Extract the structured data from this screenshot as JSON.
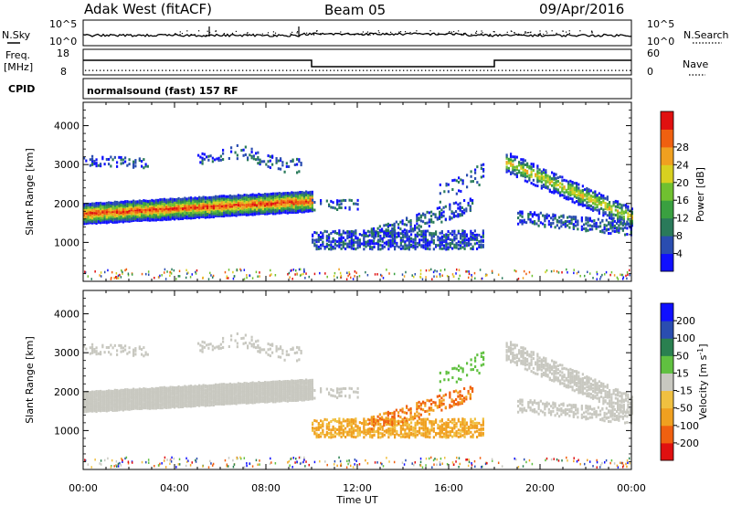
{
  "header": {
    "radar": "Adak West (fitACF)",
    "beam": "Beam 05",
    "date": "09/Apr/2016"
  },
  "status": {
    "nsky_label": "N.Sky",
    "nsky_ticks": [
      "10^5",
      "10^0"
    ],
    "nsearch_label": "N.Search",
    "freq_label_1": "Freq.",
    "freq_label_2": "[MHz]",
    "freq_ticks": [
      "18",
      "8"
    ],
    "nave_label": "Nave",
    "nave_ticks": [
      "60",
      "0"
    ],
    "cpid_label": "CPID",
    "cpid_text": "normalsound (fast) 157 RF"
  },
  "chart_data": [
    {
      "type": "heatmap",
      "panel": "power",
      "ylabel": "Slant Range [km]",
      "xlabel": "",
      "y_ticks": [
        1000,
        2000,
        3000,
        4000
      ],
      "ylim": [
        0,
        4600
      ],
      "colorbar_label": "Power [dB]",
      "colorbar_ticks": [
        "4",
        "8",
        "12",
        "16",
        "20",
        "24",
        "28"
      ],
      "colorbar_colors": [
        "#1010ff",
        "#2a4db0",
        "#2a7a5a",
        "#3aa040",
        "#70c030",
        "#d8d020",
        "#f0a020",
        "#f06010",
        "#e01010"
      ]
    },
    {
      "type": "heatmap",
      "panel": "velocity",
      "ylabel": "Slant Range [km]",
      "xlabel": "Time UT",
      "y_ticks": [
        1000,
        2000,
        3000,
        4000
      ],
      "ylim": [
        0,
        4600
      ],
      "x_ticks": [
        "00:00",
        "04:00",
        "08:00",
        "12:00",
        "16:00",
        "20:00",
        "00:00"
      ],
      "colorbar_label": "Velocity [m s-1]",
      "colorbar_ticks": [
        "-200",
        "-100",
        "-50",
        "-15",
        "15",
        "50",
        "100",
        "200"
      ],
      "colorbar_colors": [
        "#e01010",
        "#f06010",
        "#f0a020",
        "#f0c040",
        "#c8c8c0",
        "#60c040",
        "#2a8050",
        "#2a4db0",
        "#1010ff"
      ]
    }
  ]
}
